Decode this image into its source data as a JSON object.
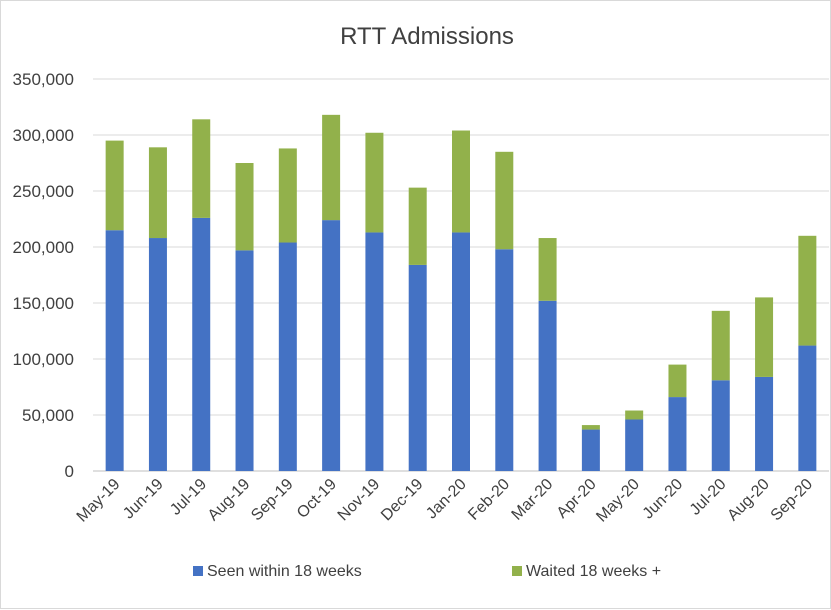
{
  "chart_data": {
    "type": "bar",
    "stacked": true,
    "title": "RTT Admissions",
    "xlabel": "",
    "ylabel": "",
    "categories": [
      "May-19",
      "Jun-19",
      "Jul-19",
      "Aug-19",
      "Sep-19",
      "Oct-19",
      "Nov-19",
      "Dec-19",
      "Jan-20",
      "Feb-20",
      "Mar-20",
      "Apr-20",
      "May-20",
      "Jun-20",
      "Jul-20",
      "Aug-20",
      "Sep-20"
    ],
    "series": [
      {
        "name": "Seen within 18 weeks",
        "color": "#4472c4",
        "values": [
          215000,
          208000,
          226000,
          197000,
          204000,
          224000,
          213000,
          184000,
          213000,
          198000,
          152000,
          37000,
          46000,
          66000,
          81000,
          84000,
          112000
        ]
      },
      {
        "name": "Waited 18 weeks +",
        "color": "#92b14b",
        "values": [
          80000,
          81000,
          88000,
          78000,
          84000,
          94000,
          89000,
          69000,
          91000,
          87000,
          56000,
          4000,
          8000,
          29000,
          62000,
          71000,
          98000
        ]
      }
    ],
    "ylim": [
      0,
      350000
    ],
    "yticks": [
      "0",
      "50,000",
      "100,000",
      "150,000",
      "200,000",
      "250,000",
      "300,000",
      "350,000"
    ],
    "ytick_values": [
      0,
      50000,
      100000,
      150000,
      200000,
      250000,
      300000,
      350000
    ],
    "grid": true,
    "legend_position": "bottom"
  }
}
